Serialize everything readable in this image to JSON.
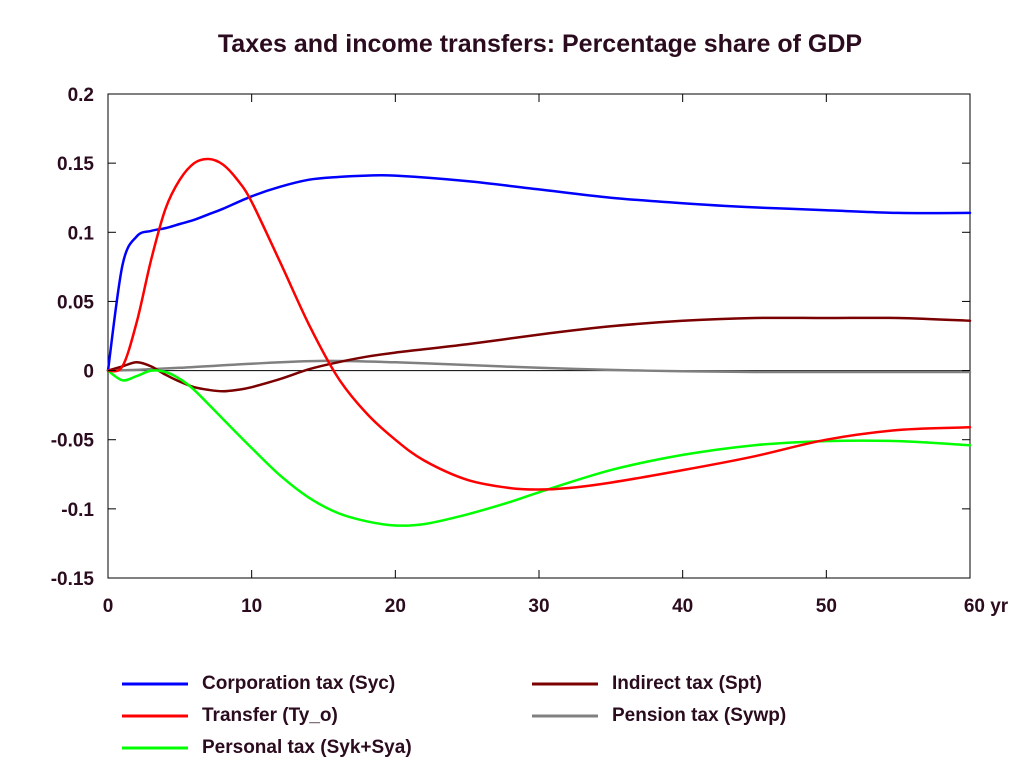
{
  "chart_data": {
    "type": "line",
    "title": "Taxes and income transfers: Percentage share of GDP",
    "xlabel": "",
    "ylabel": "",
    "x_unit_label": "yr",
    "xlim": [
      0,
      60
    ],
    "ylim": [
      -0.15,
      0.2
    ],
    "x_ticks": [
      0,
      10,
      20,
      30,
      40,
      50,
      60
    ],
    "x_tick_labels": [
      "0",
      "10",
      "20",
      "30",
      "40",
      "50",
      "60 yr"
    ],
    "y_ticks": [
      0.2,
      0.15,
      0.1,
      0.05,
      0,
      -0.05,
      -0.1,
      -0.15
    ],
    "y_tick_labels": [
      "0.2",
      "0.15",
      "0.1",
      "0.05",
      "0",
      "-0.05",
      "-0.1",
      "-0.15"
    ],
    "zero_line": true,
    "grid": false,
    "legend_position": "bottom",
    "series": [
      {
        "name": "Corporation tax (Syc)",
        "color": "#0000ff",
        "x": [
          0,
          1,
          2,
          3,
          4,
          5,
          6,
          7,
          8,
          10,
          12,
          14,
          16,
          18,
          20,
          25,
          30,
          35,
          40,
          45,
          50,
          55,
          60
        ],
        "y": [
          0,
          0.076,
          0.097,
          0.101,
          0.103,
          0.106,
          0.109,
          0.113,
          0.117,
          0.126,
          0.133,
          0.138,
          0.14,
          0.141,
          0.141,
          0.137,
          0.131,
          0.125,
          0.121,
          0.118,
          0.116,
          0.114,
          0.114
        ]
      },
      {
        "name": "Indirect tax (Spt)",
        "color": "#7b0000",
        "x": [
          0,
          1,
          2,
          3,
          4,
          5,
          6,
          7,
          8,
          9,
          10,
          12,
          14,
          16,
          18,
          20,
          25,
          30,
          35,
          40,
          45,
          50,
          55,
          60
        ],
        "y": [
          0,
          0.003,
          0.006,
          0.003,
          -0.003,
          -0.008,
          -0.012,
          -0.014,
          -0.015,
          -0.014,
          -0.012,
          -0.006,
          0.001,
          0.006,
          0.01,
          0.013,
          0.019,
          0.026,
          0.032,
          0.036,
          0.038,
          0.038,
          0.038,
          0.036
        ]
      },
      {
        "name": "Transfer (Ty_o)",
        "color": "#ff0000",
        "x": [
          0,
          1,
          2,
          3,
          4,
          5,
          6,
          7,
          8,
          9,
          10,
          12,
          14,
          16,
          18,
          20,
          22,
          25,
          28,
          30,
          32,
          35,
          40,
          45,
          50,
          55,
          60
        ],
        "y": [
          0,
          0.003,
          0.035,
          0.08,
          0.117,
          0.138,
          0.15,
          0.153,
          0.149,
          0.138,
          0.122,
          0.078,
          0.033,
          -0.005,
          -0.031,
          -0.05,
          -0.065,
          -0.079,
          -0.085,
          -0.086,
          -0.085,
          -0.081,
          -0.072,
          -0.062,
          -0.05,
          -0.043,
          -0.041
        ]
      },
      {
        "name": "Pension tax (Sywp)",
        "color": "#808080",
        "x": [
          0,
          2,
          5,
          10,
          15,
          20,
          25,
          30,
          35,
          40,
          45,
          50,
          55,
          60
        ],
        "y": [
          0,
          0.0005,
          0.002,
          0.005,
          0.007,
          0.006,
          0.004,
          0.002,
          0.0005,
          -0.0005,
          -0.001,
          -0.001,
          -0.001,
          -0.001
        ]
      },
      {
        "name": "Personal tax (Syk+Sya)",
        "color": "#00ff00",
        "x": [
          0,
          1,
          2,
          3,
          4,
          5,
          6,
          8,
          10,
          12,
          14,
          16,
          18,
          20,
          22,
          25,
          28,
          30,
          35,
          40,
          45,
          50,
          55,
          60
        ],
        "y": [
          0,
          -0.007,
          -0.004,
          0,
          -0.001,
          -0.006,
          -0.014,
          -0.035,
          -0.056,
          -0.076,
          -0.092,
          -0.103,
          -0.109,
          -0.112,
          -0.111,
          -0.104,
          -0.095,
          -0.088,
          -0.072,
          -0.061,
          -0.054,
          -0.051,
          -0.051,
          -0.054
        ]
      }
    ]
  },
  "legend": [
    {
      "label": "Corporation tax (Syc)",
      "color": "#0000ff"
    },
    {
      "label": "Transfer (Ty_o)",
      "color": "#ff0000"
    },
    {
      "label": "Personal tax (Syk+Sya)",
      "color": "#00ff00"
    },
    {
      "label": "Indirect tax (Spt)",
      "color": "#7b0000"
    },
    {
      "label": "Pension tax (Sywp)",
      "color": "#808080"
    }
  ]
}
